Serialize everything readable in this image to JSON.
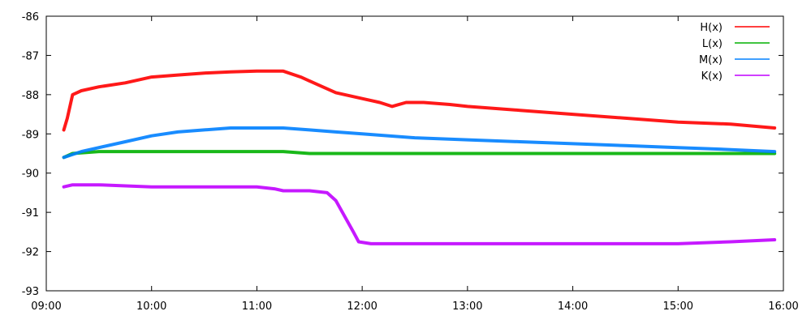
{
  "chart_data": {
    "type": "line",
    "title": "",
    "xlabel": "",
    "ylabel": "",
    "xlim": [
      "09:00",
      "16:00"
    ],
    "ylim": [
      -93,
      -86
    ],
    "x_ticks": [
      "09:00",
      "10:00",
      "11:00",
      "12:00",
      "13:00",
      "14:00",
      "15:00",
      "16:00"
    ],
    "y_ticks": [
      "-86",
      "-87",
      "-88",
      "-89",
      "-90",
      "-91",
      "-92",
      "-93"
    ],
    "grid": false,
    "legend_position": "top-right",
    "series": [
      {
        "name": "H(x)",
        "color": "#ff0000",
        "points": [
          [
            "09:10",
            -88.9
          ],
          [
            "09:12",
            -88.6
          ],
          [
            "09:15",
            -88.0
          ],
          [
            "09:20",
            -87.9
          ],
          [
            "09:30",
            -87.8
          ],
          [
            "09:45",
            -87.7
          ],
          [
            "10:00",
            -87.55
          ],
          [
            "10:15",
            -87.5
          ],
          [
            "10:30",
            -87.45
          ],
          [
            "10:45",
            -87.42
          ],
          [
            "11:00",
            -87.4
          ],
          [
            "11:10",
            -87.4
          ],
          [
            "11:15",
            -87.4
          ],
          [
            "11:25",
            -87.55
          ],
          [
            "11:35",
            -87.75
          ],
          [
            "11:45",
            -87.95
          ],
          [
            "12:00",
            -88.1
          ],
          [
            "12:10",
            -88.2
          ],
          [
            "12:17",
            -88.3
          ],
          [
            "12:25",
            -88.2
          ],
          [
            "12:35",
            -88.2
          ],
          [
            "12:50",
            -88.25
          ],
          [
            "13:00",
            -88.3
          ],
          [
            "13:30",
            -88.4
          ],
          [
            "14:00",
            -88.5
          ],
          [
            "14:30",
            -88.6
          ],
          [
            "15:00",
            -88.7
          ],
          [
            "15:30",
            -88.75
          ],
          [
            "15:55",
            -88.85
          ]
        ]
      },
      {
        "name": "L(x)",
        "color": "#00b000",
        "points": [
          [
            "09:10",
            -89.6
          ],
          [
            "09:15",
            -89.5
          ],
          [
            "09:30",
            -89.45
          ],
          [
            "10:00",
            -89.45
          ],
          [
            "10:30",
            -89.45
          ],
          [
            "11:00",
            -89.45
          ],
          [
            "11:15",
            -89.45
          ],
          [
            "11:30",
            -89.5
          ],
          [
            "12:00",
            -89.5
          ],
          [
            "12:30",
            -89.5
          ],
          [
            "13:00",
            -89.5
          ],
          [
            "13:30",
            -89.5
          ],
          [
            "14:00",
            -89.5
          ],
          [
            "14:30",
            -89.5
          ],
          [
            "15:00",
            -89.5
          ],
          [
            "15:30",
            -89.5
          ],
          [
            "15:55",
            -89.5
          ]
        ]
      },
      {
        "name": "M(x)",
        "color": "#0080ff",
        "points": [
          [
            "09:10",
            -89.6
          ],
          [
            "09:20",
            -89.45
          ],
          [
            "09:30",
            -89.35
          ],
          [
            "09:45",
            -89.2
          ],
          [
            "10:00",
            -89.05
          ],
          [
            "10:15",
            -88.95
          ],
          [
            "10:30",
            -88.9
          ],
          [
            "10:45",
            -88.85
          ],
          [
            "11:00",
            -88.85
          ],
          [
            "11:15",
            -88.85
          ],
          [
            "11:30",
            -88.9
          ],
          [
            "11:45",
            -88.95
          ],
          [
            "12:00",
            -89.0
          ],
          [
            "12:30",
            -89.1
          ],
          [
            "13:00",
            -89.15
          ],
          [
            "13:30",
            -89.2
          ],
          [
            "14:00",
            -89.25
          ],
          [
            "14:30",
            -89.3
          ],
          [
            "15:00",
            -89.35
          ],
          [
            "15:30",
            -89.4
          ],
          [
            "15:55",
            -89.45
          ]
        ]
      },
      {
        "name": "K(x)",
        "color": "#c000ff",
        "points": [
          [
            "09:10",
            -90.35
          ],
          [
            "09:15",
            -90.3
          ],
          [
            "09:30",
            -90.3
          ],
          [
            "10:00",
            -90.35
          ],
          [
            "10:30",
            -90.35
          ],
          [
            "11:00",
            -90.35
          ],
          [
            "11:10",
            -90.4
          ],
          [
            "11:15",
            -90.45
          ],
          [
            "11:30",
            -90.45
          ],
          [
            "11:40",
            -90.5
          ],
          [
            "11:45",
            -90.7
          ],
          [
            "11:50",
            -91.1
          ],
          [
            "11:55",
            -91.5
          ],
          [
            "11:58",
            -91.75
          ],
          [
            "12:05",
            -91.8
          ],
          [
            "12:30",
            -91.8
          ],
          [
            "13:00",
            -91.8
          ],
          [
            "13:30",
            -91.8
          ],
          [
            "14:00",
            -91.8
          ],
          [
            "14:30",
            -91.8
          ],
          [
            "15:00",
            -91.8
          ],
          [
            "15:30",
            -91.75
          ],
          [
            "15:55",
            -91.7
          ]
        ]
      }
    ]
  }
}
